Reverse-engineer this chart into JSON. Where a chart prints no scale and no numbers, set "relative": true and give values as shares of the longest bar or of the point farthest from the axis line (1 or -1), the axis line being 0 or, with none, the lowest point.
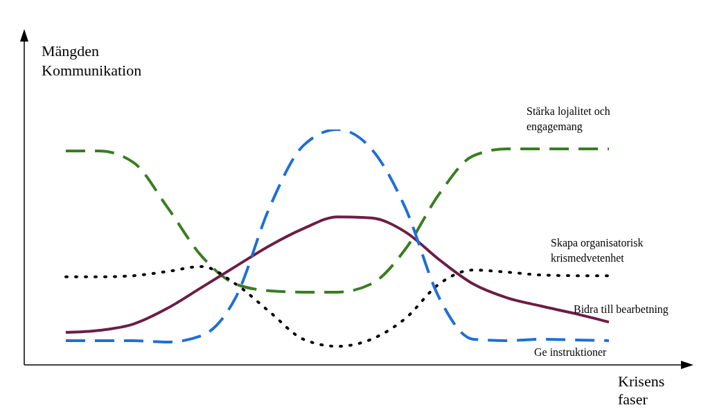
{
  "chart_data": {
    "type": "line",
    "relative": true,
    "ylabel": "Mängden Kommunikation",
    "xlabel": "Krisens faser",
    "categories": [
      null,
      null,
      null,
      null,
      null,
      null,
      null,
      null,
      null,
      null,
      null,
      null,
      null,
      null,
      null,
      null,
      null
    ],
    "series": [
      {
        "name": "Stärka lojalitet och engagemang",
        "color": "#3a7d22",
        "line_style": "dashed",
        "values": [
          0.909,
          0.909,
          0.859,
          0.668,
          0.462,
          0.344,
          0.315,
          0.309,
          0.309,
          0.344,
          0.491,
          0.726,
          0.888,
          0.918,
          0.918,
          0.918,
          0.918
        ]
      },
      {
        "name": "Skapa organisatorisk krismedvetenhet",
        "color": "#000000",
        "line_style": "dotted",
        "values": [
          0.374,
          0.374,
          0.379,
          0.397,
          0.418,
          0.344,
          0.226,
          0.109,
          0.079,
          0.109,
          0.197,
          0.344,
          0.403,
          0.394,
          0.382,
          0.379,
          0.379
        ]
      },
      {
        "name": "Bidra till bearbetning",
        "color": "#6b1e45",
        "line_style": "solid",
        "values": [
          0.138,
          0.147,
          0.174,
          0.241,
          0.329,
          0.418,
          0.506,
          0.579,
          0.629,
          0.624,
          0.565,
          0.447,
          0.344,
          0.285,
          0.25,
          0.218,
          0.182
        ]
      },
      {
        "name": "Ge instruktioner",
        "color": "#1f6fd6",
        "line_style": "dashed",
        "values": [
          0.103,
          0.103,
          0.103,
          0.097,
          0.124,
          0.285,
          0.668,
          0.932,
          1,
          0.918,
          0.668,
          0.285,
          0.109,
          0.103,
          0.109,
          0.106,
          0.103
        ]
      }
    ]
  }
}
